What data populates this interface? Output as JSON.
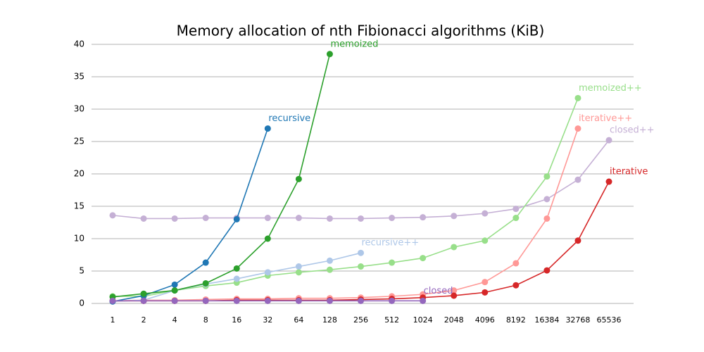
{
  "chart_data": {
    "type": "line",
    "title": "Memory allocation of nth Fibionacci algorithms (KiB)",
    "categories": [
      "1",
      "2",
      "4",
      "8",
      "16",
      "32",
      "64",
      "128",
      "256",
      "512",
      "1024",
      "2048",
      "4096",
      "8192",
      "16384",
      "32768",
      "65536"
    ],
    "ylim": [
      0,
      40
    ],
    "yticks": [
      0,
      5,
      10,
      15,
      20,
      25,
      30,
      35,
      40
    ],
    "grid": true,
    "series": [
      {
        "name": "closed++",
        "color": "#c5b0d5",
        "values": [
          13.6,
          13.1,
          13.1,
          13.2,
          13.2,
          13.2,
          13.2,
          13.1,
          13.1,
          13.2,
          13.3,
          13.5,
          13.9,
          14.6,
          16.1,
          19.1,
          25.2
        ]
      },
      {
        "name": "memoized++",
        "color": "#98df8a",
        "values": [
          1.1,
          1.1,
          2.0,
          2.7,
          3.2,
          4.3,
          4.8,
          5.2,
          5.7,
          6.3,
          7.0,
          8.7,
          9.7,
          13.2,
          19.6,
          31.7,
          null
        ]
      },
      {
        "name": "iterative++",
        "color": "#ff9896",
        "values": [
          0.4,
          0.5,
          0.5,
          0.6,
          0.7,
          0.7,
          0.8,
          0.8,
          0.9,
          1.1,
          1.4,
          2.0,
          3.3,
          6.2,
          13.1,
          27.0,
          null
        ]
      },
      {
        "name": "recursive++",
        "color": "#aec7e8",
        "values": [
          0.3,
          0.5,
          2.0,
          3.0,
          3.8,
          4.8,
          5.7,
          6.6,
          7.8,
          null,
          null,
          null,
          null,
          null,
          null,
          null,
          null
        ]
      },
      {
        "name": "iterative",
        "color": "#d62728",
        "values": [
          0.4,
          0.4,
          0.4,
          0.4,
          0.5,
          0.5,
          0.5,
          0.5,
          0.6,
          0.7,
          0.9,
          1.2,
          1.7,
          2.8,
          5.1,
          9.7,
          18.8
        ]
      },
      {
        "name": "recursive",
        "color": "#1f77b4",
        "values": [
          0.3,
          1.2,
          2.9,
          6.3,
          13.0,
          27.0,
          null,
          null,
          null,
          null,
          null,
          null,
          null,
          null,
          null,
          null,
          null
        ]
      },
      {
        "name": "memoized",
        "color": "#2ca02c",
        "values": [
          1.0,
          1.5,
          2.0,
          3.1,
          5.4,
          10.0,
          19.2,
          38.5,
          null,
          null,
          null,
          null,
          null,
          null,
          null,
          null,
          null
        ]
      },
      {
        "name": "closed",
        "color": "#9467bd",
        "values": [
          0.4,
          0.4,
          0.4,
          0.4,
          0.4,
          0.4,
          0.4,
          0.4,
          0.4,
          0.4,
          0.4,
          null,
          null,
          null,
          null,
          null,
          null
        ]
      }
    ]
  }
}
